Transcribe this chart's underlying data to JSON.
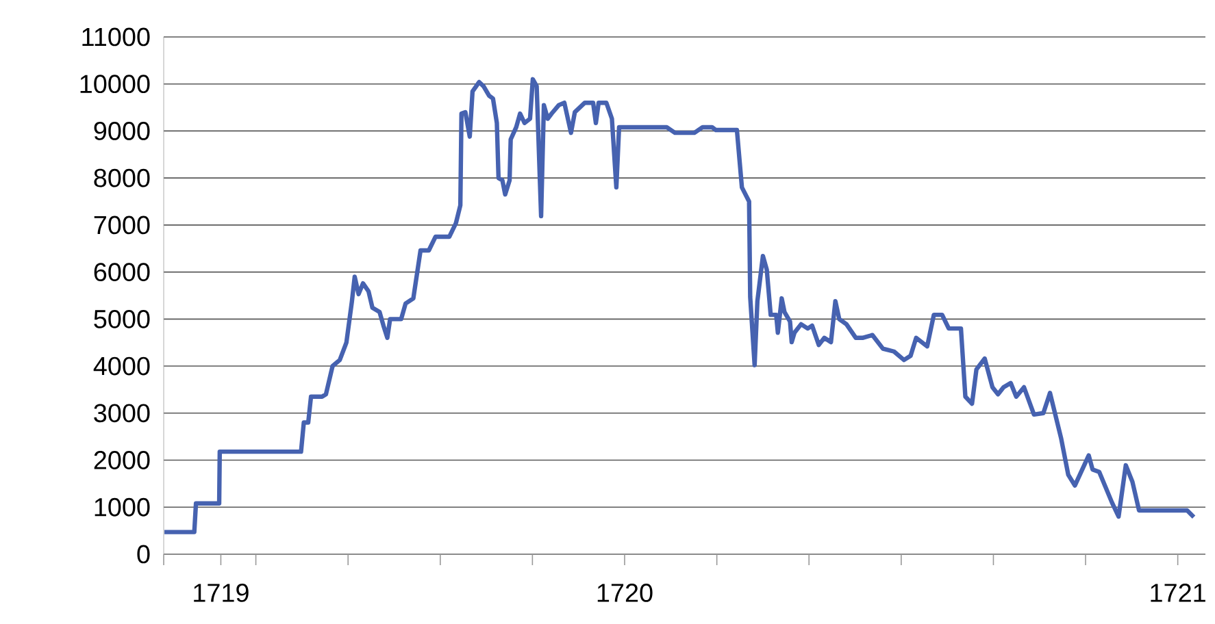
{
  "chart_data": {
    "type": "line",
    "color": "#4662b0",
    "grid": "y",
    "x": [
      1719.168,
      1719.222,
      1719.225,
      1719.267,
      1719.268,
      1719.415,
      1719.42,
      1719.428,
      1719.433,
      1719.453,
      1719.46,
      1719.472,
      1719.485,
      1719.497,
      1719.507,
      1719.512,
      1719.519,
      1719.527,
      1719.537,
      1719.544,
      1719.557,
      1719.564,
      1719.571,
      1719.576,
      1719.596,
      1719.604,
      1719.618,
      1719.631,
      1719.646,
      1719.658,
      1719.683,
      1719.695,
      1719.703,
      1719.705,
      1719.712,
      1719.72,
      1719.725,
      1719.737,
      1719.745,
      1719.755,
      1719.762,
      1719.769,
      1719.772,
      1719.779,
      1719.784,
      1719.792,
      1719.794,
      1719.804,
      1719.811,
      1719.819,
      1719.829,
      1719.834,
      1719.841,
      1719.849,
      1719.854,
      1719.861,
      1719.868,
      1719.881,
      1719.891,
      1719.903,
      1719.91,
      1719.928,
      1719.943,
      1719.948,
      1719.953,
      1719.967,
      1719.977,
      1719.985,
      1719.99,
      1720.076,
      1720.091,
      1720.126,
      1720.141,
      1720.158,
      1720.165,
      1720.203,
      1720.212,
      1720.225,
      1720.227,
      1720.235,
      1720.24,
      1720.25,
      1720.257,
      1720.264,
      1720.274,
      1720.277,
      1720.284,
      1720.289,
      1720.299,
      1720.302,
      1720.307,
      1720.319,
      1720.331,
      1720.339,
      1720.351,
      1720.361,
      1720.373,
      1720.381,
      1720.388,
      1720.401,
      1720.418,
      1720.43,
      1720.448,
      1720.467,
      1720.487,
      1720.505,
      1720.517,
      1720.527,
      1720.537,
      1720.547,
      1720.559,
      1720.574,
      1720.586,
      1720.608,
      1720.616,
      1720.628,
      1720.636,
      1720.651,
      1720.665,
      1720.675,
      1720.685,
      1720.698,
      1720.708,
      1720.722,
      1720.74,
      1720.757,
      1720.769,
      1720.789,
      1720.802,
      1720.814,
      1720.839,
      1720.846,
      1720.858,
      1720.881,
      1720.893,
      1720.906,
      1720.918,
      1720.93,
      1721.017,
      1721.029
    ],
    "values": [
      470,
      470,
      1080,
      1080,
      2180,
      2180,
      2800,
      2800,
      3350,
      3350,
      3400,
      4000,
      4130,
      4500,
      5380,
      5900,
      5530,
      5760,
      5590,
      5240,
      5150,
      4860,
      4600,
      5000,
      5000,
      5330,
      5440,
      6460,
      6460,
      6750,
      6750,
      7040,
      7420,
      9370,
      9400,
      8880,
      9840,
      10040,
      9950,
      9750,
      9690,
      9170,
      8000,
      7950,
      7650,
      7950,
      8820,
      9080,
      9370,
      9170,
      9260,
      10100,
      9950,
      7190,
      9550,
      9260,
      9370,
      9550,
      9600,
      8960,
      9400,
      9600,
      9600,
      9170,
      9600,
      9600,
      9260,
      7800,
      9080,
      9080,
      8960,
      8960,
      9080,
      9080,
      9020,
      9020,
      7800,
      7500,
      5470,
      4020,
      5380,
      6340,
      6050,
      5090,
      5090,
      4710,
      5440,
      5150,
      4950,
      4510,
      4710,
      4890,
      4800,
      4860,
      4450,
      4600,
      4510,
      5380,
      5000,
      4890,
      4600,
      4600,
      4660,
      4370,
      4310,
      4130,
      4220,
      4600,
      4510,
      4420,
      5090,
      5090,
      4800,
      4800,
      3350,
      3200,
      3930,
      4160,
      3550,
      3400,
      3550,
      3640,
      3350,
      3550,
      2970,
      3000,
      3430,
      2470,
      1690,
      1460,
      2100,
      1800,
      1750,
      1100,
      800,
      1890,
      1540,
      930,
      930,
      790
    ],
    "xlim": [
      1719.1667,
      1721.05
    ],
    "ylim": [
      0,
      11000
    ],
    "xticks": [
      {
        "value": 1719.1667,
        "label": null
      },
      {
        "value": 1719.27,
        "label": "1719"
      },
      {
        "value": 1719.3333,
        "label": null
      },
      {
        "value": 1719.5,
        "label": null
      },
      {
        "value": 1719.6667,
        "label": null
      },
      {
        "value": 1719.8333,
        "label": null
      },
      {
        "value": 1720,
        "label": "1720"
      },
      {
        "value": 1720.1667,
        "label": null
      },
      {
        "value": 1720.3333,
        "label": null
      },
      {
        "value": 1720.5,
        "label": null
      },
      {
        "value": 1720.6667,
        "label": null
      },
      {
        "value": 1720.8333,
        "label": null
      },
      {
        "value": 1721,
        "label": "1721"
      }
    ],
    "yticks": [
      0,
      1000,
      2000,
      3000,
      4000,
      5000,
      6000,
      7000,
      8000,
      9000,
      10000,
      11000
    ]
  }
}
